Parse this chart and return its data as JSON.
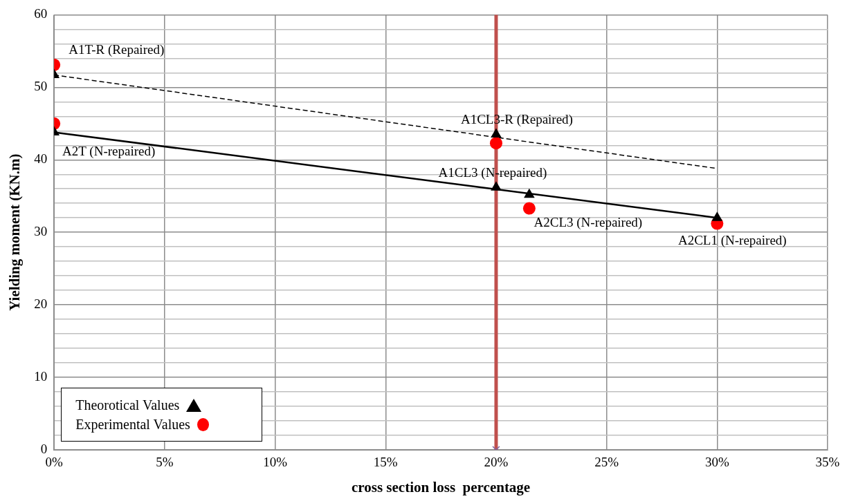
{
  "chart_data": {
    "type": "scatter",
    "xlabel": "cross section loss  percentage",
    "ylabel": "Yielding moment (KN.m)",
    "xlim": [
      0,
      35
    ],
    "xticks": [
      {
        "value": 0,
        "label": "0%"
      },
      {
        "value": 5,
        "label": "5%"
      },
      {
        "value": 10,
        "label": "10%"
      },
      {
        "value": 15,
        "label": "15%"
      },
      {
        "value": 20,
        "label": "20%"
      },
      {
        "value": 25,
        "label": "25%"
      },
      {
        "value": 30,
        "label": "30%"
      },
      {
        "value": 35,
        "label": "35%"
      }
    ],
    "ylim": [
      0,
      60
    ],
    "yticks": [
      0,
      {
        "value": 2,
        "label": null
      },
      {
        "value": 4,
        "label": null
      },
      {
        "value": 6,
        "label": null
      },
      {
        "value": 8,
        "label": null
      },
      10,
      {
        "value": 12,
        "label": null
      },
      {
        "value": 14,
        "label": null
      },
      {
        "value": 16,
        "label": null
      },
      {
        "value": 18,
        "label": null
      },
      20,
      {
        "value": 22,
        "label": null
      },
      {
        "value": 24,
        "label": null
      },
      {
        "value": 26,
        "label": null
      },
      {
        "value": 28,
        "label": null
      },
      30,
      {
        "value": 32,
        "label": null
      },
      {
        "value": 34,
        "label": null
      },
      {
        "value": 36,
        "label": null
      },
      {
        "value": 38,
        "label": null
      },
      40,
      {
        "value": 42,
        "label": null
      },
      {
        "value": 44,
        "label": null
      },
      {
        "value": 46,
        "label": null
      },
      {
        "value": 48,
        "label": null
      },
      50,
      {
        "value": 52,
        "label": null
      },
      {
        "value": 54,
        "label": null
      },
      {
        "value": 56,
        "label": null
      },
      {
        "value": 58,
        "label": null
      },
      60
    ],
    "grid": true,
    "legend": "bottom left",
    "series": [
      {
        "type": "line",
        "color": "#000000",
        "line_style": "dashed",
        "marker": "none",
        "x": [
          0,
          30
        ],
        "values": [
          51.7,
          38.8
        ]
      },
      {
        "type": "line",
        "color": "#000000",
        "line_style": "solid",
        "marker": "none",
        "x": [
          0,
          30
        ],
        "values": [
          43.8,
          32.0
        ]
      },
      {
        "type": "scatter",
        "name": "Experimental  Values",
        "color": "#ff0000",
        "marker": "circle",
        "x": [
          0,
          0,
          20,
          21.5,
          30
        ],
        "values": [
          53.1,
          45.0,
          42.3,
          33.3,
          31.2
        ]
      },
      {
        "type": "scatter",
        "name": "Theorotical  Values",
        "color": "#000000",
        "marker": "triangle",
        "x": [
          0,
          0,
          20,
          20,
          21.5,
          30
        ],
        "values": [
          51.7,
          43.8,
          43.5,
          36.2,
          35.2,
          32.0
        ]
      },
      {
        "type": "scatter",
        "color": "#8064a2",
        "marker": "cross",
        "x": [
          20
        ],
        "values": [
          0
        ]
      }
    ],
    "ref_lines": [
      {
        "axis": "x",
        "value": 20,
        "color": "#c0504d"
      }
    ],
    "annotations": [
      {
        "text": "A1T-R (Repaired)",
        "x": 0,
        "y": 53.1
      },
      {
        "text": "A2T (N-repaired)",
        "x": 0,
        "y": 43.8
      },
      {
        "text": "A1CL3-R (Repaired)",
        "x": 20,
        "y": 43.5
      },
      {
        "text": "A1CL3 (N-repaired)",
        "x": 20,
        "y": 36.2
      },
      {
        "text": "A2CL3 (N-repaired)",
        "x": 21.5,
        "y": 33.3
      },
      {
        "text": "A2CL1 (N-repaired)",
        "x": 30,
        "y": 31.2
      }
    ]
  }
}
